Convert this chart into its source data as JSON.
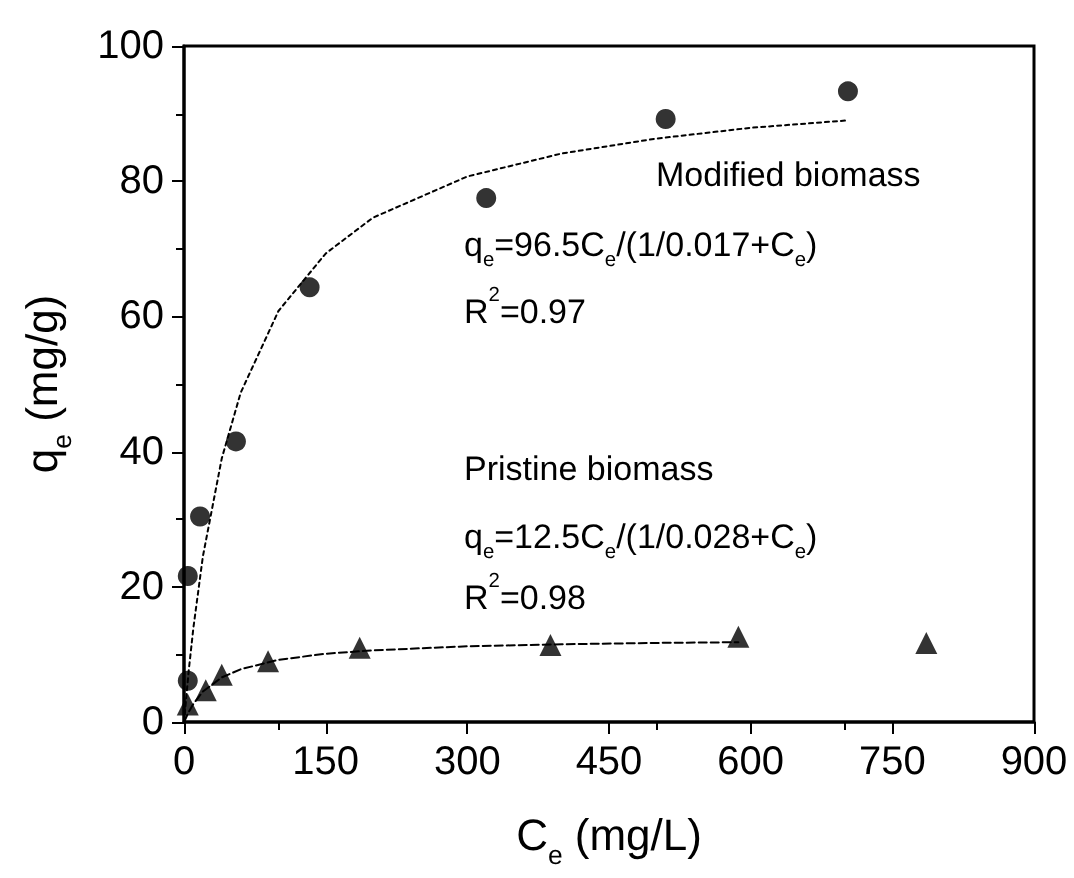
{
  "chart_data": {
    "type": "scatter",
    "xlabel": "C$_{e}$ (mg/L)",
    "ylabel": "q$_{e}$ (mg/g)",
    "xlim": [
      0,
      900
    ],
    "xticks": [
      0,
      150,
      300,
      450,
      600,
      750,
      900
    ],
    "ylim": [
      0,
      100
    ],
    "yticks": [
      0,
      20,
      40,
      60,
      80,
      100
    ],
    "grid": false,
    "series": [
      {
        "color": "#000000",
        "marker": "circle",
        "x": [
          4,
          4,
          17,
          55,
          133,
          320,
          510,
          703
        ],
        "values": [
          6.1,
          21.6,
          30.4,
          41.5,
          64.3,
          77.5,
          89.2,
          93.3
        ]
      },
      {
        "color": "#000000",
        "marker": "triangle",
        "x": [
          4,
          23,
          40,
          89,
          186,
          388,
          587,
          786
        ],
        "values": [
          2.6,
          4.7,
          7.0,
          9.0,
          11.0,
          11.4,
          12.6,
          11.7
        ]
      },
      {
        "type": "line",
        "color": "#000000",
        "marker": "none",
        "line_style": "dotted",
        "x": [
          0,
          5,
          10,
          20,
          40,
          60,
          100,
          150,
          200,
          300,
          400,
          500,
          600,
          703
        ],
        "values": [
          0,
          7.6,
          14,
          24.5,
          39,
          48.7,
          60.8,
          69.3,
          74.6,
          80.7,
          84.1,
          86.3,
          87.9,
          89
        ]
      },
      {
        "type": "line",
        "color": "#000000",
        "marker": "none",
        "line_style": "dashed",
        "x": [
          0,
          5,
          10,
          20,
          40,
          60,
          100,
          150,
          200,
          300,
          400,
          500,
          587
        ],
        "values": [
          0,
          1.5,
          2.7,
          4.5,
          6.6,
          7.8,
          9.2,
          10.1,
          10.6,
          11.2,
          11.5,
          11.7,
          11.8
        ]
      }
    ],
    "annotations": [
      "Modified biomass",
      "q$_{e}$=96.5C$_{e}$/(1/0.017+C$_{e}$)",
      "R$^{2}$=0.97",
      "Pristine biomass",
      "q$_{e}$=12.5C$_{e}$/(1/0.028+C$_{e}$)",
      "R$^{2}$=0.98"
    ]
  }
}
